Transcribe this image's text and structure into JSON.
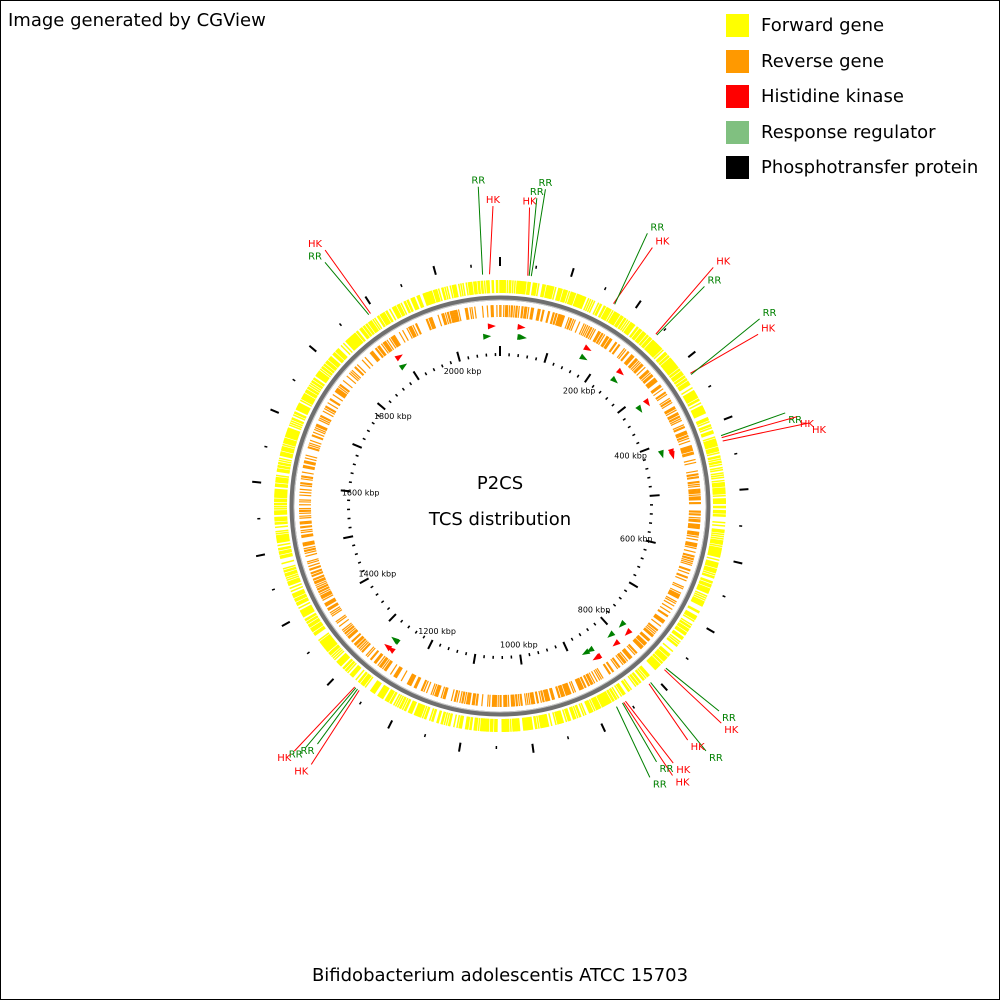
{
  "credit": "Image generated by CGView",
  "footer_title": "Bifidobacterium adolescentis ATCC 15703",
  "center_label_1": "P2CS",
  "center_label_2": "TCS distribution",
  "legend": [
    {
      "label": "Forward gene",
      "color": "#ffff00"
    },
    {
      "label": "Reverse gene",
      "color": "#ff9900"
    },
    {
      "label": "Histidine kinase",
      "color": "#ff0000"
    },
    {
      "label": "Response regulator",
      "color": "#80c080"
    },
    {
      "label": "Phosphotransfer protein",
      "color": "#000000"
    }
  ],
  "genome": {
    "length_kbp": 2090,
    "tick_labels": [
      {
        "text": "200 kbp",
        "kbp": 200
      },
      {
        "text": "400 kbp",
        "kbp": 400
      },
      {
        "text": "600 kbp",
        "kbp": 600
      },
      {
        "text": "800 kbp",
        "kbp": 800
      },
      {
        "text": "1000 kbp",
        "kbp": 1000
      },
      {
        "text": "1200 kbp",
        "kbp": 1200
      },
      {
        "text": "1400 kbp",
        "kbp": 1400
      },
      {
        "text": "1600 kbp",
        "kbp": 1600
      },
      {
        "text": "1800 kbp",
        "kbp": 1800
      },
      {
        "text": "2000 kbp",
        "kbp": 2000
      }
    ],
    "colors": {
      "hk": "#ff0000",
      "rr": "#008000",
      "forward": "#ffff00",
      "reverse": "#ff9900",
      "backbone": "#808080"
    }
  },
  "features": [
    {
      "label": "RR",
      "type": "rr",
      "kbp": 2065,
      "inner": "rr"
    },
    {
      "label": "HK",
      "type": "hk",
      "kbp": 2075,
      "inner": "hk"
    },
    {
      "label": "HK",
      "type": "hk",
      "kbp": 40,
      "inner": "hk"
    },
    {
      "label": "RR",
      "type": "rr",
      "kbp": 42,
      "inner": "rr"
    },
    {
      "label": "RR",
      "type": "rr",
      "kbp": 45,
      "inner": "rr"
    },
    {
      "label": "HK",
      "type": "hk",
      "kbp": 170,
      "inner": "hk"
    },
    {
      "label": "RR",
      "type": "rr",
      "kbp": 172,
      "inner": "rr"
    },
    {
      "label": "HK",
      "type": "hk",
      "kbp": 245,
      "inner": "hk"
    },
    {
      "label": "RR",
      "type": "rr",
      "kbp": 247,
      "inner": "rr"
    },
    {
      "label": "HK",
      "type": "hk",
      "kbp": 320,
      "inner": "hk"
    },
    {
      "label": "RR",
      "type": "rr",
      "kbp": 322,
      "inner": "rr"
    },
    {
      "label": "RR",
      "type": "rr",
      "kbp": 420,
      "inner": "rr"
    },
    {
      "label": "HK",
      "type": "hk",
      "kbp": 423,
      "inner": "hk"
    },
    {
      "label": "HK",
      "type": "hk",
      "kbp": 428,
      "inner": "hk"
    },
    {
      "label": "RR",
      "type": "rr",
      "kbp": 780,
      "inner": "rr"
    },
    {
      "label": "HK",
      "type": "hk",
      "kbp": 783,
      "inner": "hk"
    },
    {
      "label": "RR",
      "type": "rr",
      "kbp": 810,
      "inner": "rr"
    },
    {
      "label": "HK",
      "type": "hk",
      "kbp": 813,
      "inner": "hk"
    },
    {
      "label": "HK",
      "type": "hk",
      "kbp": 855,
      "inner": "hk"
    },
    {
      "label": "HK",
      "type": "hk",
      "kbp": 858,
      "inner": "hk"
    },
    {
      "label": "RR",
      "type": "rr",
      "kbp": 860,
      "inner": "rr"
    },
    {
      "label": "RR",
      "type": "rr",
      "kbp": 870,
      "inner": "rr"
    },
    {
      "label": "HK",
      "type": "hk",
      "kbp": 1262,
      "inner": "hk"
    },
    {
      "label": "RR",
      "type": "rr",
      "kbp": 1265,
      "inner": "rr"
    },
    {
      "label": "RR",
      "type": "rr",
      "kbp": 1268,
      "inner": "rr"
    },
    {
      "label": "HK",
      "type": "hk",
      "kbp": 1270,
      "inner": "hk"
    },
    {
      "label": "RR",
      "type": "rr",
      "kbp": 1890,
      "inner": "rr"
    },
    {
      "label": "HK",
      "type": "hk",
      "kbp": 1893,
      "inner": "hk"
    }
  ]
}
